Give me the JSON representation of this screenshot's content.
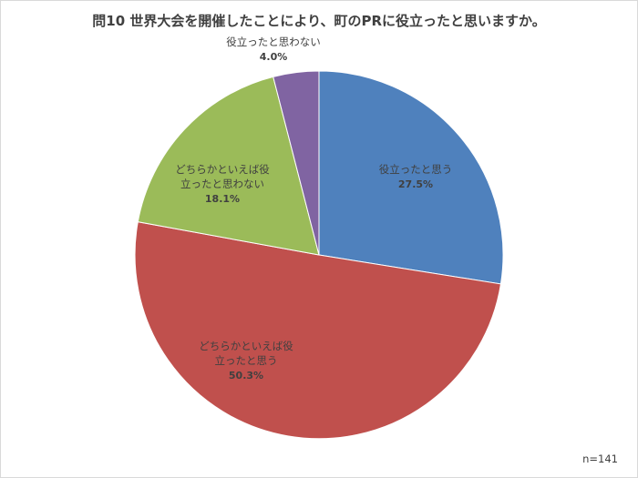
{
  "chart_data": {
    "type": "pie",
    "title": "問10  世界大会を開催したことにより、町のPRに役立ったと思いますか。",
    "slices": [
      {
        "label_lines": [
          "役立ったと思う"
        ],
        "percent_text": "27.5%",
        "value": 27.5,
        "color": "#4f81bd"
      },
      {
        "label_lines": [
          "どちらかといえば役",
          "立ったと思う"
        ],
        "percent_text": "50.3%",
        "value": 50.3,
        "color": "#c0504d"
      },
      {
        "label_lines": [
          "どちらかといえば役",
          "立ったと思わない"
        ],
        "percent_text": "18.1%",
        "value": 18.1,
        "color": "#9bbb59"
      },
      {
        "label_lines": [
          "役立ったと思わない"
        ],
        "percent_text": "4.0%",
        "value": 4.0,
        "color": "#8064a2"
      }
    ],
    "note": "n=141"
  }
}
